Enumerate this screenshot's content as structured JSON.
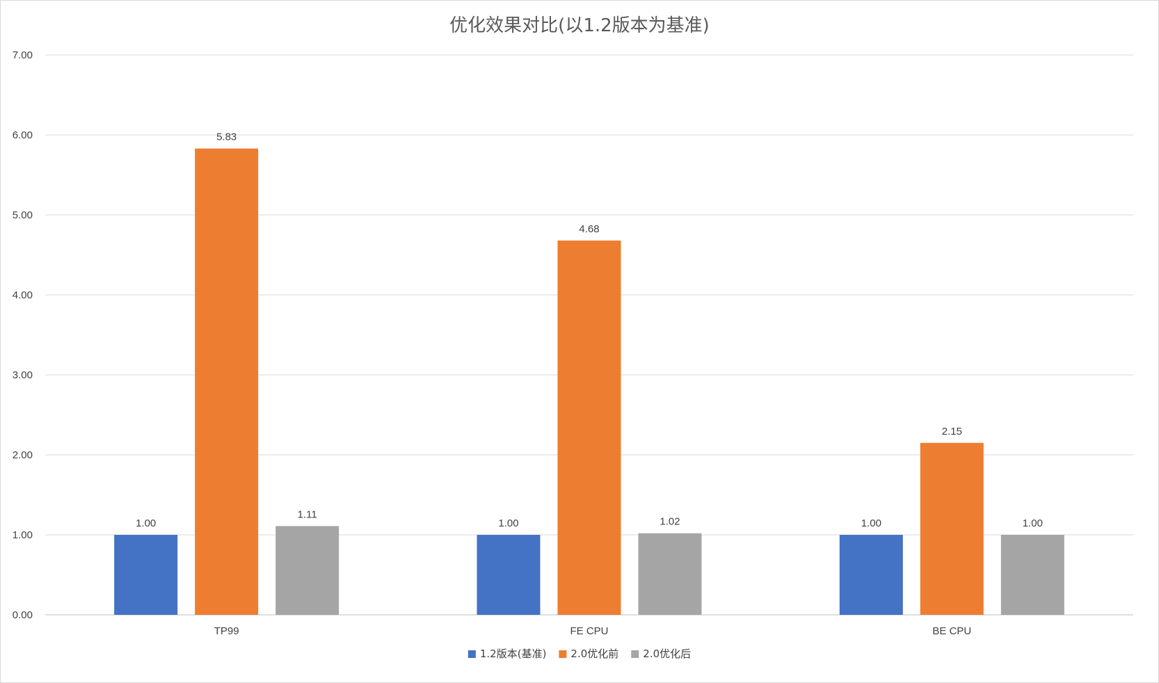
{
  "chart_data": {
    "type": "bar",
    "title": "优化效果对比(以1.2版本为基准)",
    "categories": [
      "TP99",
      "FE CPU",
      "BE CPU"
    ],
    "series": [
      {
        "name": "1.2版本(基准)",
        "color": "#4472c4",
        "values": [
          1.0,
          1.0,
          1.0
        ]
      },
      {
        "name": "2.0优化前",
        "color": "#ed7d31",
        "values": [
          5.83,
          4.68,
          2.15
        ]
      },
      {
        "name": "2.0优化后",
        "color": "#a5a5a5",
        "values": [
          1.11,
          1.02,
          1.0
        ]
      }
    ],
    "ylim": [
      0,
      7
    ],
    "yticks": [
      "0.00",
      "1.00",
      "2.00",
      "3.00",
      "4.00",
      "5.00",
      "6.00",
      "7.00"
    ],
    "grid": true,
    "legend": "bottom"
  }
}
